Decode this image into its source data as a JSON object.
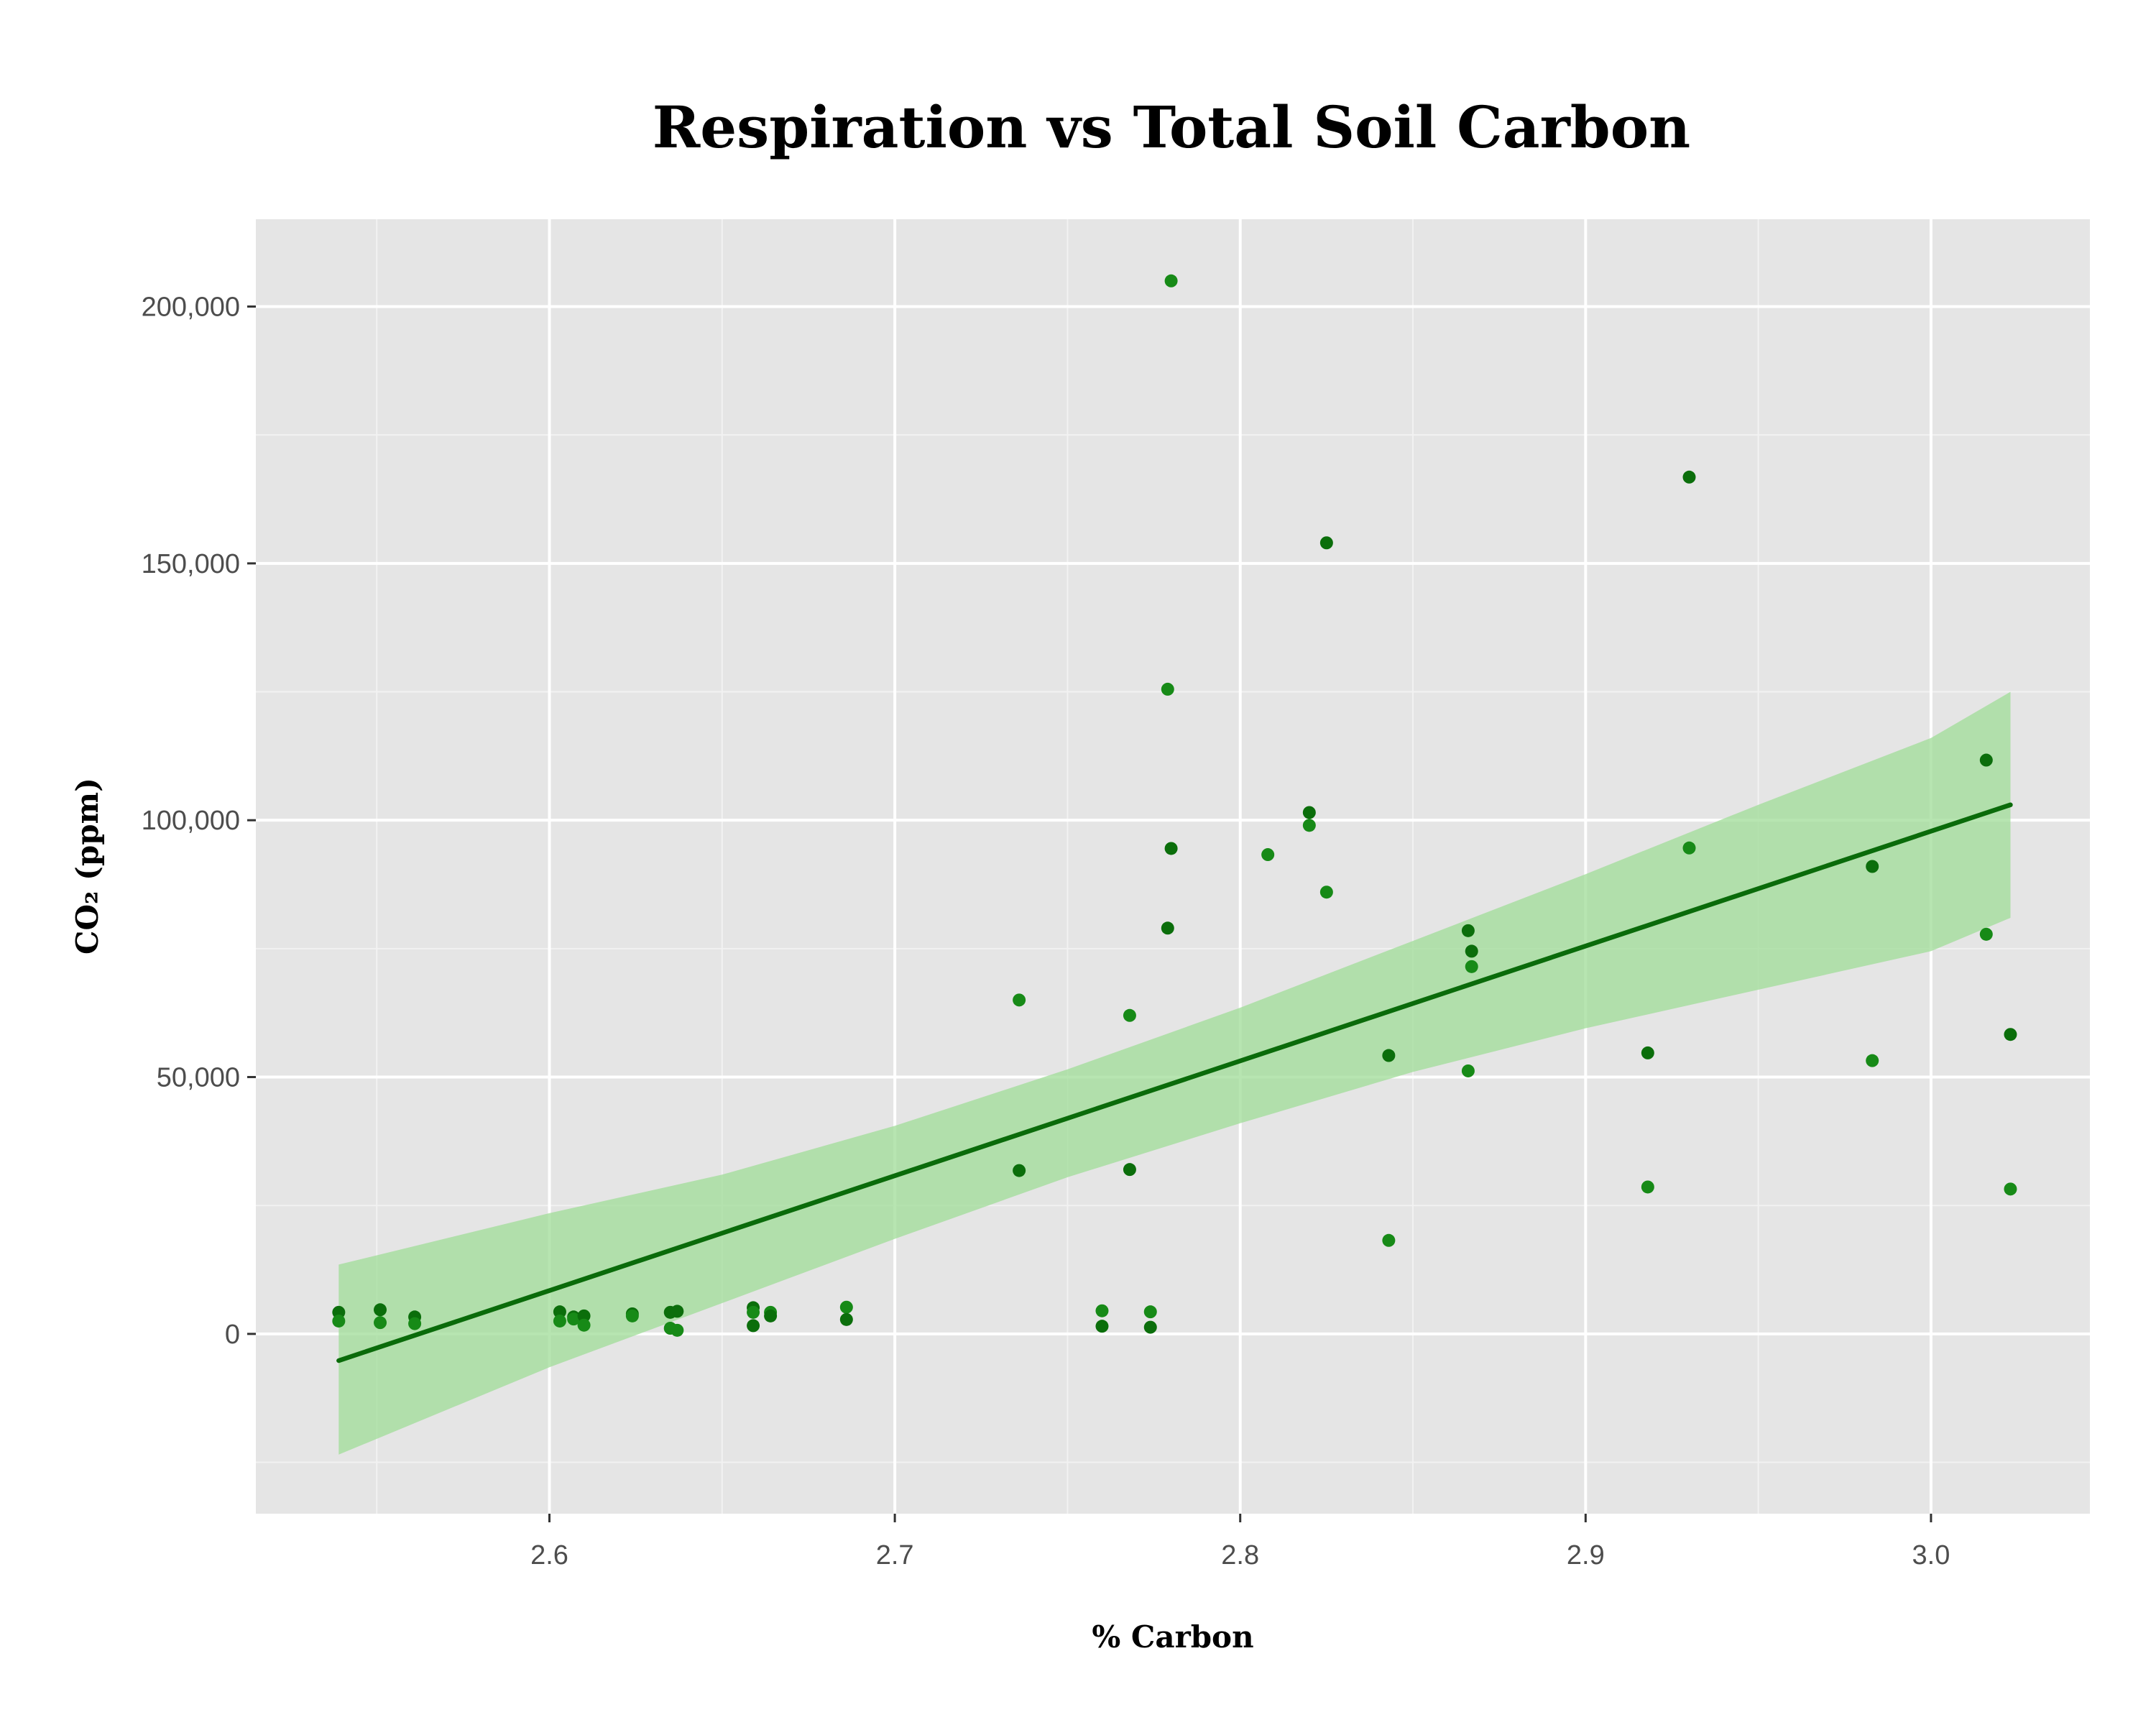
{
  "chart_data": {
    "type": "scatter",
    "title": "Respiration vs Total Soil Carbon",
    "xlabel": "% Carbon",
    "ylabel": "CO₂ (ppm)",
    "xlim": [
      2.515,
      3.046
    ],
    "ylim": [
      -35000,
      217000
    ],
    "x_ticks": [
      2.6,
      2.7,
      2.8,
      2.9,
      3.0
    ],
    "x_tick_labels": [
      "2.6",
      "2.7",
      "2.8",
      "2.9",
      "3.0"
    ],
    "y_ticks": [
      0,
      50000,
      100000,
      150000,
      200000
    ],
    "y_tick_labels": [
      "0",
      "50,000",
      "100,000",
      "150,000",
      "200,000"
    ],
    "grid": true,
    "background_color": "#e5e5e5",
    "point_colors": [
      "#0b6e0b",
      "#178a17"
    ],
    "trend_color": "#0a6b0a",
    "band_color": "#9fdc97",
    "points": [
      {
        "x": 2.539,
        "y": 4200
      },
      {
        "x": 2.539,
        "y": 2500
      },
      {
        "x": 2.551,
        "y": 4700
      },
      {
        "x": 2.551,
        "y": 2200
      },
      {
        "x": 2.561,
        "y": 3300
      },
      {
        "x": 2.561,
        "y": 2000
      },
      {
        "x": 2.603,
        "y": 4300
      },
      {
        "x": 2.603,
        "y": 2500
      },
      {
        "x": 2.607,
        "y": 3300
      },
      {
        "x": 2.607,
        "y": 2900
      },
      {
        "x": 2.61,
        "y": 3500
      },
      {
        "x": 2.61,
        "y": 1700
      },
      {
        "x": 2.624,
        "y": 3900
      },
      {
        "x": 2.624,
        "y": 3500
      },
      {
        "x": 2.635,
        "y": 4200
      },
      {
        "x": 2.635,
        "y": 1100
      },
      {
        "x": 2.637,
        "y": 4400
      },
      {
        "x": 2.637,
        "y": 700
      },
      {
        "x": 2.659,
        "y": 5100
      },
      {
        "x": 2.659,
        "y": 4200
      },
      {
        "x": 2.659,
        "y": 1600
      },
      {
        "x": 2.664,
        "y": 4200
      },
      {
        "x": 2.664,
        "y": 3500
      },
      {
        "x": 2.686,
        "y": 5200
      },
      {
        "x": 2.686,
        "y": 2800
      },
      {
        "x": 2.736,
        "y": 65000
      },
      {
        "x": 2.736,
        "y": 31800
      },
      {
        "x": 2.76,
        "y": 4500
      },
      {
        "x": 2.76,
        "y": 1500
      },
      {
        "x": 2.768,
        "y": 62000
      },
      {
        "x": 2.768,
        "y": 32000
      },
      {
        "x": 2.774,
        "y": 4300
      },
      {
        "x": 2.774,
        "y": 1300
      },
      {
        "x": 2.779,
        "y": 125500
      },
      {
        "x": 2.779,
        "y": 79000
      },
      {
        "x": 2.78,
        "y": 205000
      },
      {
        "x": 2.78,
        "y": 94500
      },
      {
        "x": 2.808,
        "y": 93300
      },
      {
        "x": 2.82,
        "y": 101500
      },
      {
        "x": 2.82,
        "y": 99000
      },
      {
        "x": 2.825,
        "y": 154000
      },
      {
        "x": 2.825,
        "y": 86000
      },
      {
        "x": 2.843,
        "y": 54200
      },
      {
        "x": 2.843,
        "y": 18200
      },
      {
        "x": 2.866,
        "y": 78500
      },
      {
        "x": 2.866,
        "y": 51200
      },
      {
        "x": 2.867,
        "y": 74500
      },
      {
        "x": 2.867,
        "y": 71500
      },
      {
        "x": 2.918,
        "y": 54700
      },
      {
        "x": 2.918,
        "y": 28600
      },
      {
        "x": 2.93,
        "y": 166800
      },
      {
        "x": 2.93,
        "y": 94600
      },
      {
        "x": 2.983,
        "y": 91000
      },
      {
        "x": 2.983,
        "y": 53200
      },
      {
        "x": 3.016,
        "y": 111700
      },
      {
        "x": 3.016,
        "y": 77800
      },
      {
        "x": 3.023,
        "y": 58300
      },
      {
        "x": 3.023,
        "y": 28200
      }
    ],
    "trend_line": {
      "x": [
        2.539,
        3.023
      ],
      "y": [
        -5200,
        103000
      ]
    },
    "confidence_band": {
      "x": [
        2.539,
        2.6,
        2.65,
        2.7,
        2.75,
        2.8,
        2.85,
        2.9,
        2.95,
        3.0,
        3.023
      ],
      "lower": [
        -23500,
        -6500,
        6000,
        18500,
        30500,
        41000,
        51000,
        59500,
        67000,
        74500,
        81000
      ],
      "upper": [
        13500,
        23500,
        31000,
        40500,
        51500,
        63500,
        76500,
        89500,
        103000,
        116000,
        125000
      ]
    }
  }
}
